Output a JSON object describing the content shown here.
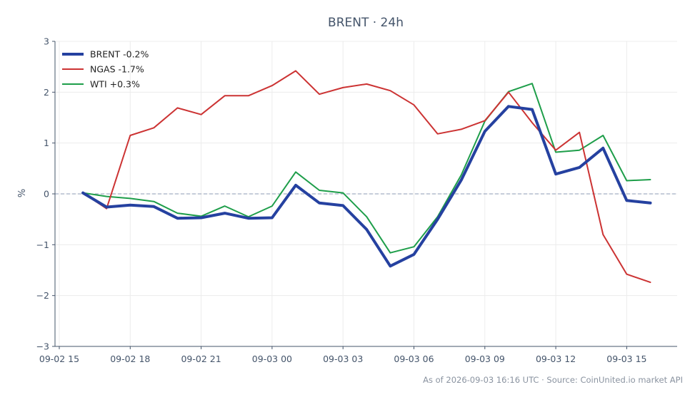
{
  "chart_data": {
    "type": "line",
    "title": "BRENT · 24h",
    "ylabel": "%",
    "xlabel": "",
    "ylim": [
      -3,
      3
    ],
    "yticks": [
      -3,
      -2,
      -1,
      0,
      1,
      2,
      3
    ],
    "ytick_labels": [
      "−3",
      "−2",
      "−1",
      "0",
      "1",
      "2",
      "3"
    ],
    "xlim": [
      0,
      27
    ],
    "xticks": [
      {
        "x": 0,
        "label": "09-02 15"
      },
      {
        "x": 3,
        "label": "09-02 18"
      },
      {
        "x": 6,
        "label": "09-02 21"
      },
      {
        "x": 9,
        "label": "09-03 00"
      },
      {
        "x": 12,
        "label": "09-03 03"
      },
      {
        "x": 15,
        "label": "09-03 06"
      },
      {
        "x": 18,
        "label": "09-03 09"
      },
      {
        "x": 21,
        "label": "09-03 12"
      },
      {
        "x": 24,
        "label": "09-03 15"
      }
    ],
    "x": [
      1,
      2,
      3,
      4,
      5,
      6,
      7,
      8,
      9,
      10,
      11,
      12,
      13,
      14,
      15,
      16,
      17,
      18,
      19,
      20,
      21,
      22,
      23,
      24,
      25
    ],
    "zero_line": true,
    "grid": true,
    "legend": "top-left",
    "series": [
      {
        "name": "BRENT -0.2%",
        "color": "#2541a0",
        "width": 4,
        "values": [
          0.02,
          -0.26,
          -0.22,
          -0.25,
          -0.48,
          -0.47,
          -0.38,
          -0.48,
          -0.47,
          0.17,
          -0.18,
          -0.23,
          -0.7,
          -1.42,
          -1.19,
          -0.5,
          0.27,
          1.23,
          1.72,
          1.66,
          0.39,
          0.52,
          0.9,
          -0.13,
          -0.18
        ]
      },
      {
        "name": "NGAS -1.7%",
        "color": "#cc3333",
        "width": 2,
        "values": [
          0.02,
          -0.29,
          1.15,
          1.3,
          1.69,
          1.56,
          1.93,
          1.93,
          2.13,
          2.42,
          1.96,
          2.09,
          2.16,
          2.03,
          1.75,
          1.18,
          1.27,
          1.44,
          2.0,
          1.4,
          0.86,
          1.21,
          -0.8,
          -1.58,
          -1.74
        ]
      },
      {
        "name": "WTI +0.3%",
        "color": "#1e9e4a",
        "width": 2,
        "values": [
          0.02,
          -0.05,
          -0.09,
          -0.15,
          -0.38,
          -0.44,
          -0.24,
          -0.45,
          -0.24,
          0.43,
          0.07,
          0.02,
          -0.45,
          -1.16,
          -1.04,
          -0.45,
          0.37,
          1.43,
          2.01,
          2.17,
          0.82,
          0.86,
          1.15,
          0.26,
          0.28
        ]
      }
    ]
  },
  "footer": "As of 2026-09-03 16:16 UTC · Source: CoinUnited.io market API"
}
